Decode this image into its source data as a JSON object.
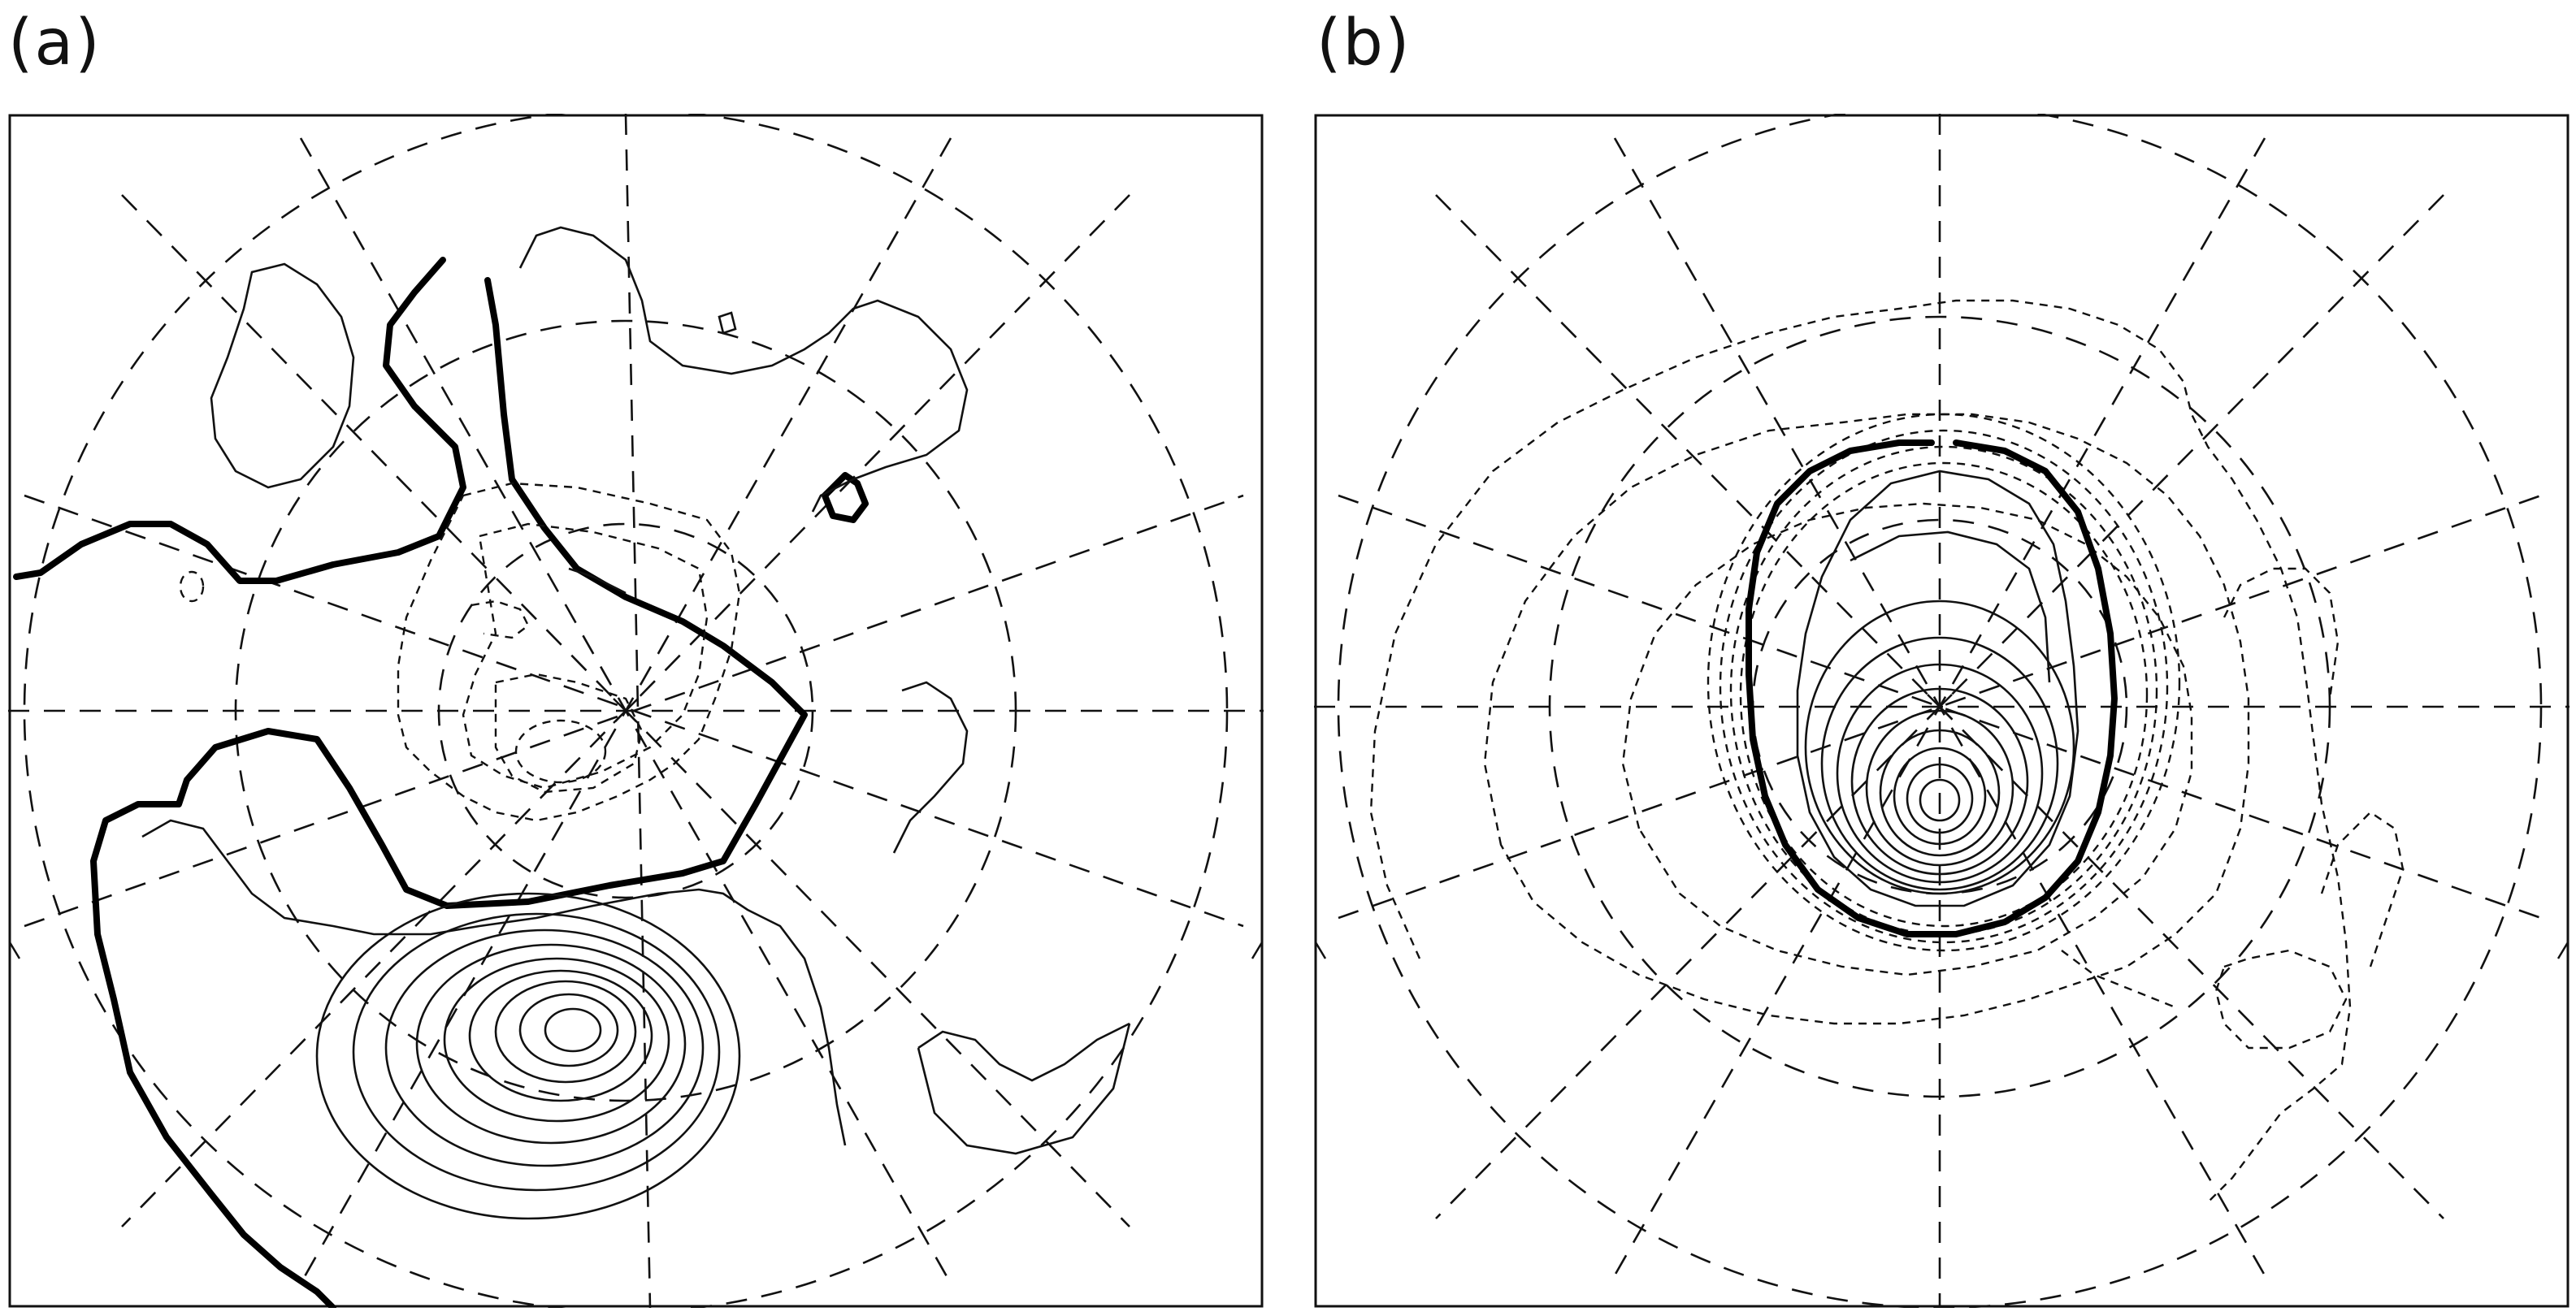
{
  "figure": {
    "panels": [
      {
        "id": "a",
        "label": "(a)"
      },
      {
        "id": "b",
        "label": "(b)"
      }
    ]
  }
}
